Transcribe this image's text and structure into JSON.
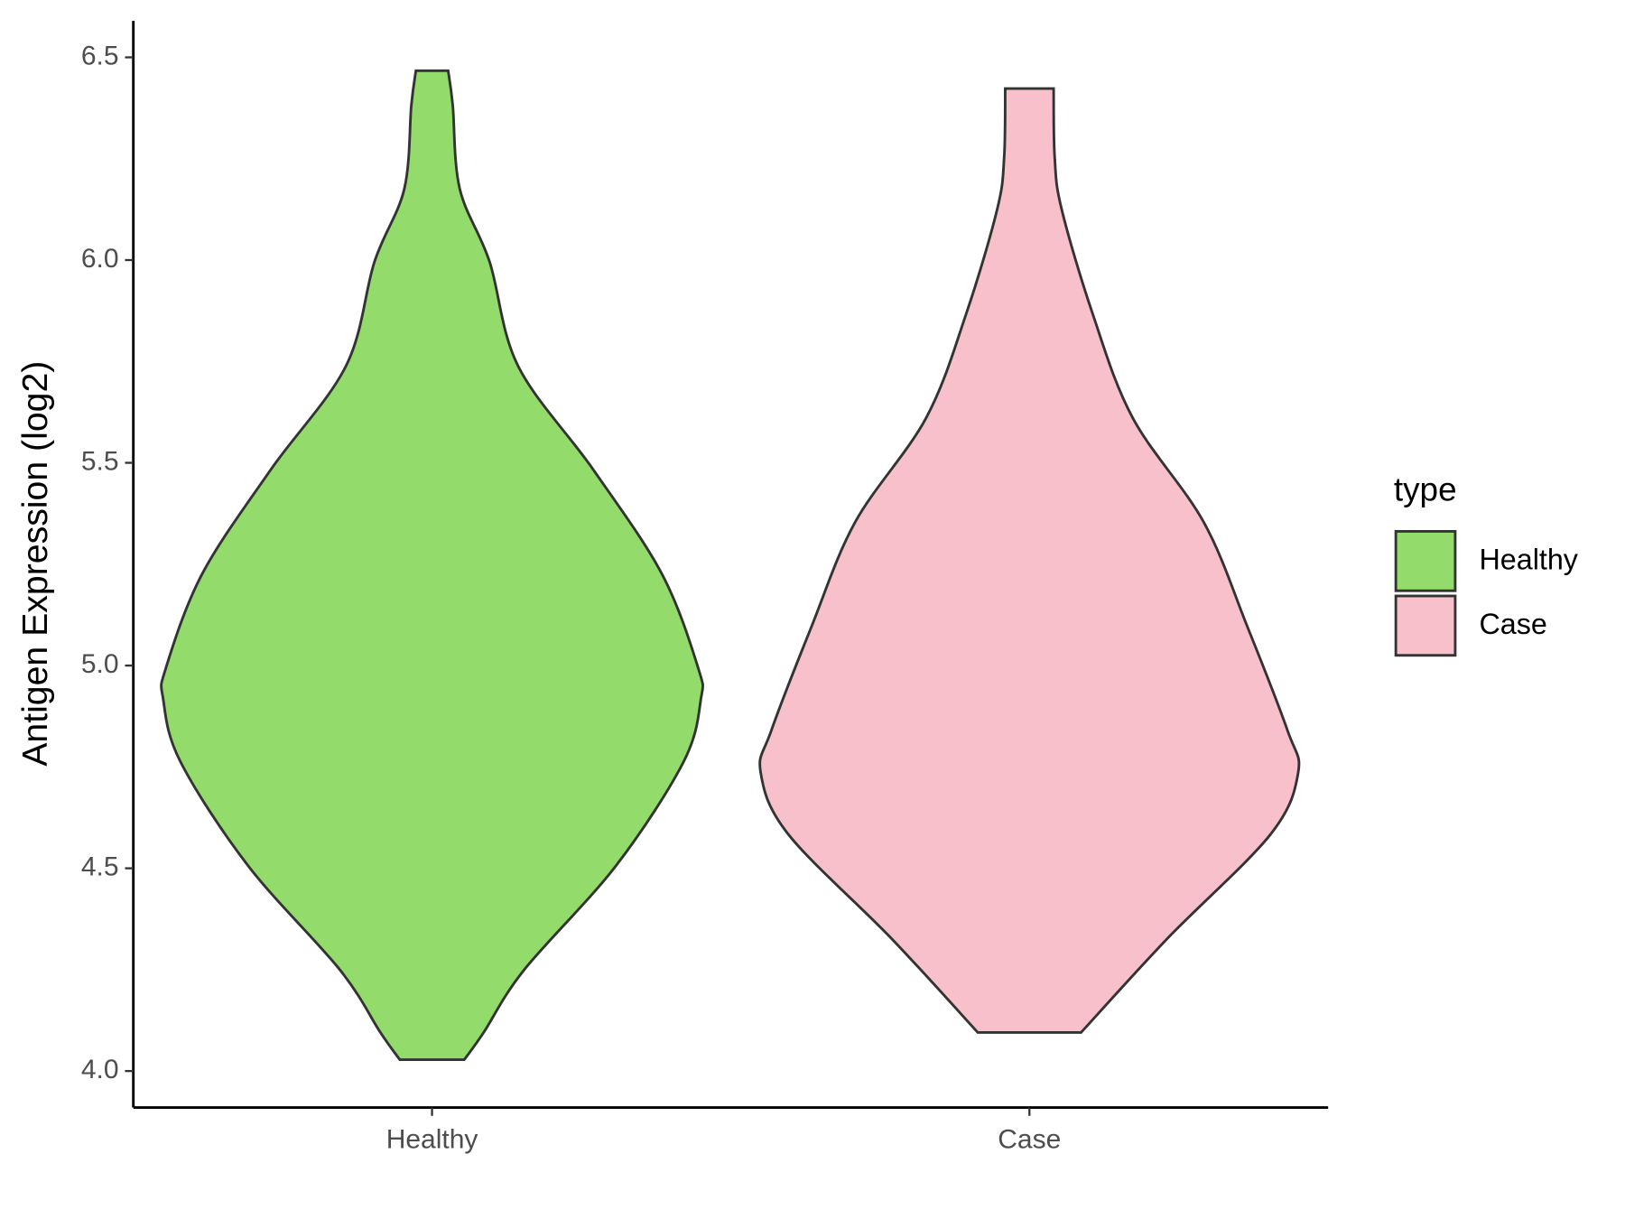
{
  "chart_data": {
    "type": "violin",
    "y_label": "Antigen Expression (log2)",
    "categories": [
      "Healthy",
      "Case"
    ],
    "ylim": [
      3.91,
      6.59
    ],
    "yticks": [
      {
        "value": 4,
        "label": "4.0"
      },
      4.5,
      {
        "value": 5,
        "label": "5.0"
      },
      5.5,
      {
        "value": 6,
        "label": "6.0"
      },
      6.5
    ],
    "legend_title": "type",
    "series": [
      {
        "name": "Healthy",
        "color": "#93dc6b",
        "density": {
          "y": [
            4.028,
            4.095,
            4.249,
            4.506,
            4.763,
            4.917,
            4.994,
            5.226,
            5.483,
            5.739,
            5.996,
            6.176,
            6.382,
            6.467
          ],
          "width": [
            0.12,
            0.192,
            0.342,
            0.684,
            0.936,
            1.0,
            0.99,
            0.855,
            0.6,
            0.32,
            0.214,
            0.103,
            0.077,
            0.06
          ]
        }
      },
      {
        "name": "Case",
        "color": "#f7c0cb",
        "density": {
          "y": [
            4.095,
            4.326,
            4.583,
            4.737,
            4.84,
            5.097,
            5.354,
            5.611,
            5.868,
            6.125,
            6.253,
            6.423
          ],
          "width": [
            0.192,
            0.512,
            0.896,
            1.0,
            0.96,
            0.81,
            0.648,
            0.384,
            0.235,
            0.12,
            0.094,
            0.09
          ]
        }
      }
    ]
  }
}
